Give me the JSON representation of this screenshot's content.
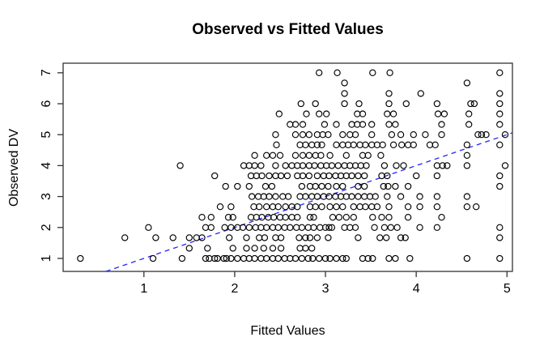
{
  "chart_data": {
    "type": "scatter",
    "title": "Observed vs Fitted Values",
    "xlabel": "Fitted Values",
    "ylabel": "Observed DV",
    "xlim": [
      0.11,
      5.06
    ],
    "ylim": [
      0.58,
      7.31
    ],
    "x_ticks": [
      1,
      2,
      3,
      4,
      5
    ],
    "y_ticks": [
      1,
      2,
      3,
      4,
      5,
      6,
      7
    ],
    "grid": false,
    "legend": "none",
    "marker": {
      "shape": "open-circle",
      "color": "#000000"
    },
    "reference_line": {
      "type": "identity",
      "slope": 1,
      "intercept": 0,
      "style": "dashed",
      "color": "#2424ff"
    },
    "rows": [
      {
        "y": 7,
        "x": [
          2.93,
          3.13,
          3.52,
          3.71,
          4.92
        ]
      },
      {
        "y": 6.67,
        "x": [
          3.21,
          4.56
        ]
      },
      {
        "y": 6.33,
        "x": [
          3.21,
          3.7,
          4.05,
          4.92
        ]
      },
      {
        "y": 6,
        "x": [
          2.73,
          2.89,
          3.21,
          3.37,
          3.7,
          3.89,
          4.23,
          4.6,
          4.64,
          4.92
        ]
      },
      {
        "y": 5.67,
        "x": [
          2.49,
          2.79,
          2.93,
          3.01,
          3.35,
          3.41,
          3.68,
          3.75,
          4.24,
          4.31,
          4.58,
          4.92
        ]
      },
      {
        "y": 5.33,
        "x": [
          2.61,
          2.67,
          2.75,
          2.99,
          3.12,
          3.29,
          3.35,
          3.41,
          3.51,
          3.7,
          3.77,
          4.28,
          4.58,
          4.92
        ]
      },
      {
        "y": 5,
        "x": [
          2.45,
          2.67,
          2.75,
          2.82,
          2.91,
          2.97,
          3.03,
          3.19,
          3.27,
          3.33,
          3.51,
          3.73,
          3.83,
          3.97,
          4.1,
          4.28,
          4.68,
          4.72,
          4.77,
          4.98
        ]
      },
      {
        "y": 4.67,
        "x": [
          2.46,
          2.72,
          2.78,
          2.85,
          2.91,
          2.96,
          3.12,
          3.19,
          3.25,
          3.31,
          3.38,
          3.44,
          3.51,
          3.57,
          3.63,
          3.75,
          3.84,
          3.91,
          3.97,
          4.15,
          4.21,
          4.56,
          4.92
        ]
      },
      {
        "y": 4.33,
        "x": [
          2.22,
          2.35,
          2.42,
          2.5,
          2.67,
          2.75,
          2.82,
          2.89,
          2.95,
          3.05,
          3.23,
          3.41,
          3.47,
          3.61,
          4.56
        ]
      },
      {
        "y": 4,
        "x": [
          1.4,
          2.1,
          2.16,
          2.22,
          2.29,
          2.45,
          2.56,
          2.63,
          2.69,
          2.75,
          2.82,
          2.88,
          2.95,
          3.01,
          3.07,
          3.14,
          3.21,
          3.27,
          3.33,
          3.39,
          3.45,
          3.65,
          3.78,
          3.86,
          4.23,
          4.29,
          4.34,
          4.56,
          4.98
        ]
      },
      {
        "y": 3.67,
        "x": [
          1.78,
          2.18,
          2.24,
          2.3,
          2.38,
          2.45,
          2.51,
          2.58,
          2.69,
          2.75,
          2.82,
          2.91,
          2.98,
          3.04,
          3.11,
          3.17,
          3.23,
          3.29,
          3.36,
          3.43,
          3.62,
          3.68,
          4.0,
          4.23,
          4.92
        ]
      },
      {
        "y": 3.33,
        "x": [
          1.9,
          2.03,
          2.16,
          2.34,
          2.41,
          2.74,
          2.83,
          2.89,
          2.96,
          3.03,
          3.12,
          3.19,
          3.36,
          3.43,
          3.64,
          3.69,
          3.77,
          3.91,
          4.92
        ]
      },
      {
        "y": 3,
        "x": [
          2.19,
          2.26,
          2.32,
          2.38,
          2.45,
          2.53,
          2.59,
          2.72,
          2.78,
          2.85,
          2.91,
          2.98,
          3.04,
          3.11,
          3.17,
          3.23,
          3.29,
          3.36,
          3.43,
          3.49,
          3.55,
          3.68,
          3.83,
          4.04,
          4.23,
          4.56
        ]
      },
      {
        "y": 2.67,
        "x": [
          1.84,
          1.96,
          2.21,
          2.27,
          2.35,
          2.42,
          2.48,
          2.56,
          2.63,
          2.69,
          2.83,
          2.89,
          2.96,
          3.05,
          3.12,
          3.19,
          3.31,
          3.38,
          3.44,
          3.51,
          3.57,
          3.7,
          3.91,
          4.04,
          4.23,
          4.56,
          4.66
        ]
      },
      {
        "y": 2.33,
        "x": [
          1.64,
          1.74,
          1.93,
          1.98,
          2.18,
          2.24,
          2.3,
          2.37,
          2.43,
          2.5,
          2.56,
          2.63,
          2.69,
          2.83,
          2.87,
          3.08,
          3.15,
          3.23,
          3.31,
          3.52,
          3.62,
          3.7,
          3.91,
          4.28
        ]
      },
      {
        "y": 2,
        "x": [
          1.05,
          1.68,
          1.74,
          1.89,
          1.96,
          2.03,
          2.09,
          2.16,
          2.23,
          2.29,
          2.35,
          2.42,
          2.48,
          2.55,
          2.61,
          2.68,
          2.74,
          2.81,
          2.87,
          2.94,
          3.0,
          3.04,
          3.07,
          3.21,
          3.27,
          3.33,
          3.54,
          3.65,
          3.72,
          3.79,
          4.04,
          4.23,
          4.92
        ]
      },
      {
        "y": 1.67,
        "x": [
          0.79,
          1.13,
          1.32,
          1.5,
          1.58,
          1.64,
          1.94,
          2.13,
          2.27,
          2.33,
          2.45,
          2.51,
          2.71,
          2.78,
          2.83,
          2.91,
          3.03,
          3.36,
          3.6,
          3.67,
          3.83,
          3.88,
          4.92
        ]
      },
      {
        "y": 1.33,
        "x": [
          1.5,
          1.7,
          1.98,
          2.13,
          2.22,
          2.32,
          2.42,
          2.51,
          2.72,
          2.78,
          2.85
        ]
      },
      {
        "y": 1,
        "x": [
          0.3,
          1.1,
          1.42,
          1.68,
          1.72,
          1.78,
          1.81,
          1.88,
          1.91,
          1.96,
          2.03,
          2.1,
          2.16,
          2.22,
          2.29,
          2.35,
          2.42,
          2.48,
          2.55,
          2.61,
          2.67,
          2.74,
          2.81,
          2.86,
          2.93,
          3.0,
          3.05,
          3.12,
          3.19,
          3.23,
          3.41,
          3.47,
          3.52,
          3.7,
          3.77,
          3.93,
          4.56,
          4.92
        ]
      }
    ]
  },
  "colors": {
    "background": "#ffffff",
    "axis": "#333333",
    "text": "#000000",
    "reference_line": "#2424ff",
    "marker": "#000000"
  }
}
